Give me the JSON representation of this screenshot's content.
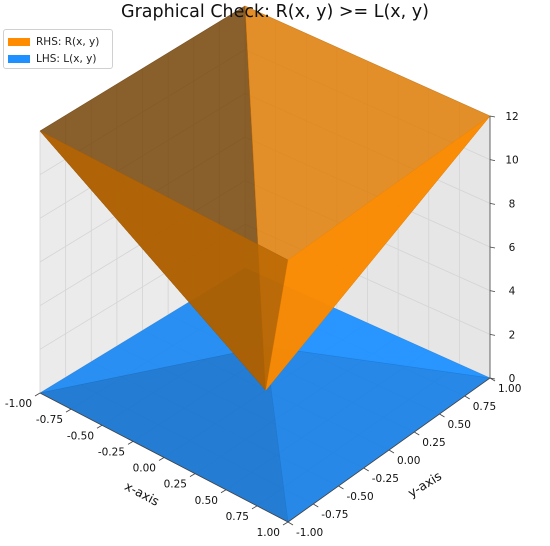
{
  "chart_data": {
    "type": "surface3d",
    "title": "Graphical Check: R(x, y) >= L(x, y)",
    "xlabel": "x-axis",
    "ylabel": "y-axis",
    "zlabel": "",
    "xlim": [
      -1,
      1
    ],
    "ylim": [
      -1,
      1
    ],
    "zlim": [
      0,
      12
    ],
    "x_ticks": [
      "-1.00",
      "-0.75",
      "-0.50",
      "-0.25",
      "0.00",
      "0.25",
      "0.50",
      "0.75",
      "1.00"
    ],
    "y_ticks": [
      "-1.00",
      "-0.75",
      "-0.50",
      "-0.25",
      "0.00",
      "0.25",
      "0.50",
      "0.75",
      "1.00"
    ],
    "z_ticks": [
      "0",
      "2",
      "4",
      "6",
      "8",
      "10",
      "12"
    ],
    "grid": true,
    "legend_position": "top-left",
    "series": [
      {
        "name": "RHS: R(x, y)",
        "color": "#ff8c00",
        "surface": "pyramid",
        "corner_values": [
          {
            "x": -1,
            "y": -1,
            "z": 12
          },
          {
            "x": 1,
            "y": -1,
            "z": 12
          },
          {
            "x": 1,
            "y": 1,
            "z": 12
          },
          {
            "x": -1,
            "y": 1,
            "z": 12
          }
        ],
        "center_value": {
          "x": 0,
          "y": 0,
          "z": 0
        }
      },
      {
        "name": "LHS: L(x, y)",
        "color": "#1e90ff",
        "surface": "pyramid",
        "corner_values": [
          {
            "x": -1,
            "y": -1,
            "z": 0
          },
          {
            "x": 1,
            "y": -1,
            "z": 0
          },
          {
            "x": 1,
            "y": 1,
            "z": 0
          },
          {
            "x": -1,
            "y": 1,
            "z": 0
          }
        ],
        "center_value": {
          "x": 0,
          "y": 0,
          "z": 2
        }
      }
    ]
  }
}
